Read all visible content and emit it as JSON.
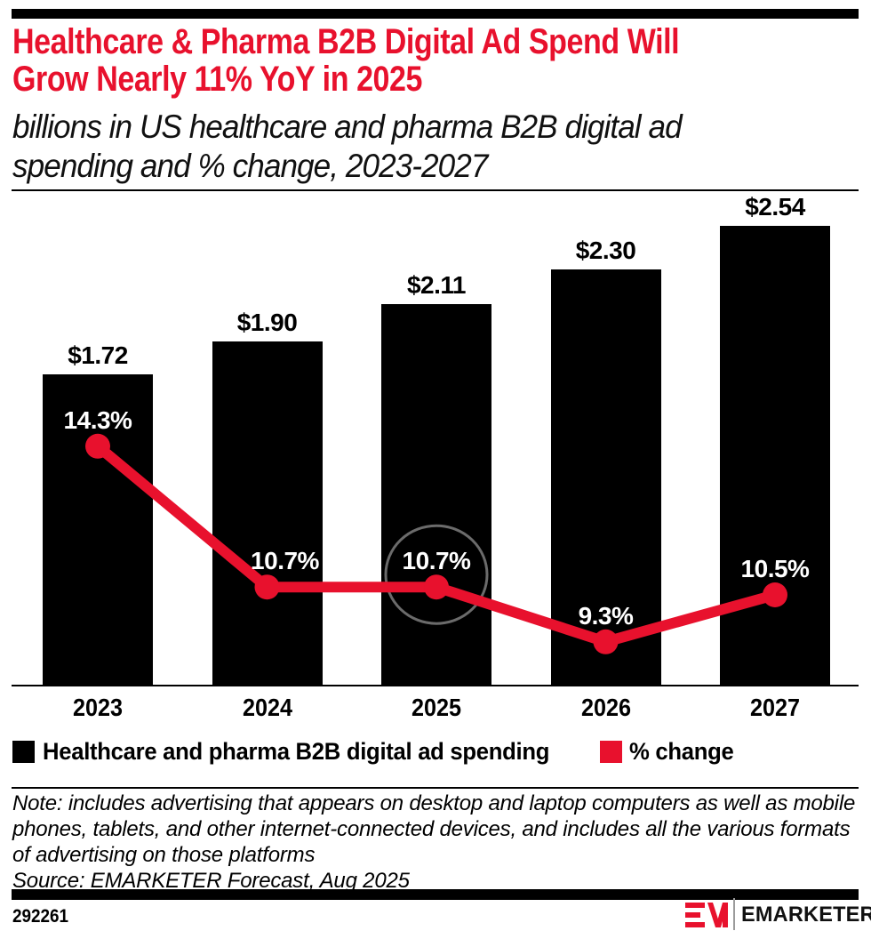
{
  "header": {
    "title_lines": [
      "Healthcare & Pharma B2B Digital Ad Spend Will",
      "Grow Nearly 11% YoY in 2025"
    ],
    "subtitle_lines": [
      "billions in US healthcare and pharma B2B digital ad",
      "spending and % change, 2023-2027"
    ],
    "title_color": "#E8112D"
  },
  "chart_data": {
    "type": "bar",
    "combo": "bar+line",
    "categories": [
      "2023",
      "2024",
      "2025",
      "2026",
      "2027"
    ],
    "series": [
      {
        "name": "Healthcare and pharma B2B digital ad spending",
        "type": "bar",
        "unit": "US$ billions",
        "values": [
          1.72,
          1.9,
          2.11,
          2.3,
          2.54
        ],
        "labels": [
          "$1.72",
          "$1.90",
          "$2.11",
          "$2.30",
          "$2.54"
        ],
        "color": "#000000"
      },
      {
        "name": "% change",
        "type": "line",
        "unit": "percent YoY",
        "values": [
          14.3,
          10.7,
          10.7,
          9.3,
          10.5
        ],
        "labels": [
          "14.3%",
          "10.7%",
          "10.7%",
          "9.3%",
          "10.5%"
        ],
        "color": "#E8112D"
      }
    ],
    "annotations": [
      {
        "type": "circle-highlight",
        "series": "% change",
        "category": "2025",
        "label": "10.7%",
        "stroke_color": "#6b6b6b"
      }
    ],
    "legend_position": "bottom",
    "grid": false,
    "value_label_color_on_bar": "#ffffff"
  },
  "legend": {
    "items": [
      {
        "label": "Healthcare and pharma B2B digital ad spending",
        "color": "#000000"
      },
      {
        "label": "% change",
        "color": "#E8112D"
      }
    ]
  },
  "footnote": {
    "note_lines": [
      "Note: includes advertising that appears on desktop and laptop computers as well as mobile",
      "phones, tablets, and other internet-connected devices, and includes all the various formats",
      "of advertising on those platforms"
    ],
    "source": "Source: EMARKETER Forecast, Aug 2025"
  },
  "footer": {
    "chart_id": "292261",
    "brand": "EMARKETER",
    "logo_monogram": "EM",
    "brand_red": "#E8112D"
  }
}
